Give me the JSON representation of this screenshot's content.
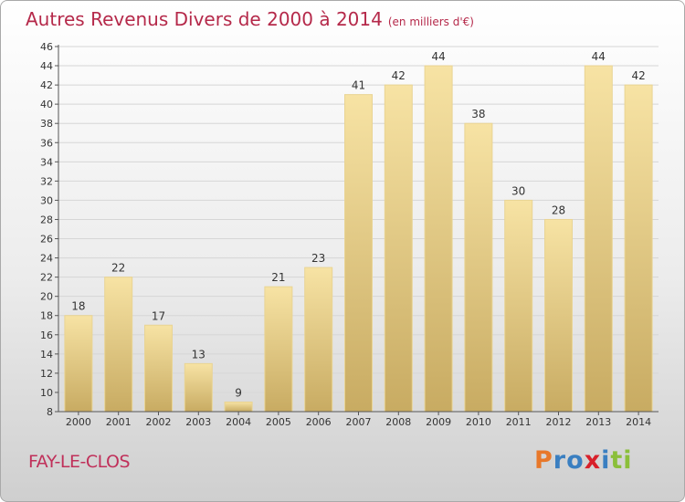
{
  "title": "Autres Revenus Divers de 2000 à 2014",
  "subtitle": "(en milliers d'€)",
  "location": "FAY-LE-CLOS",
  "logo": {
    "letters": [
      "P",
      "r",
      "o",
      "x",
      "i",
      "t",
      "i"
    ],
    "colors": [
      "#e8782a",
      "#3a7fc1",
      "#3a7fc1",
      "#d8202a",
      "#3a7fc1",
      "#8bbf3a",
      "#8bbf3a"
    ]
  },
  "chart_data": {
    "type": "bar",
    "categories": [
      "2000",
      "2001",
      "2002",
      "2003",
      "2004",
      "2005",
      "2006",
      "2007",
      "2008",
      "2009",
      "2010",
      "2011",
      "2012",
      "2013",
      "2014"
    ],
    "values": [
      18,
      22,
      17,
      13,
      9,
      21,
      23,
      41,
      42,
      44,
      38,
      30,
      28,
      44,
      42
    ],
    "ylim": [
      8,
      46
    ],
    "yticks": [
      8,
      10,
      12,
      14,
      16,
      18,
      20,
      22,
      24,
      26,
      28,
      30,
      32,
      34,
      36,
      38,
      40,
      42,
      44,
      46
    ],
    "grid": true,
    "bar_color": "#e8c976"
  }
}
